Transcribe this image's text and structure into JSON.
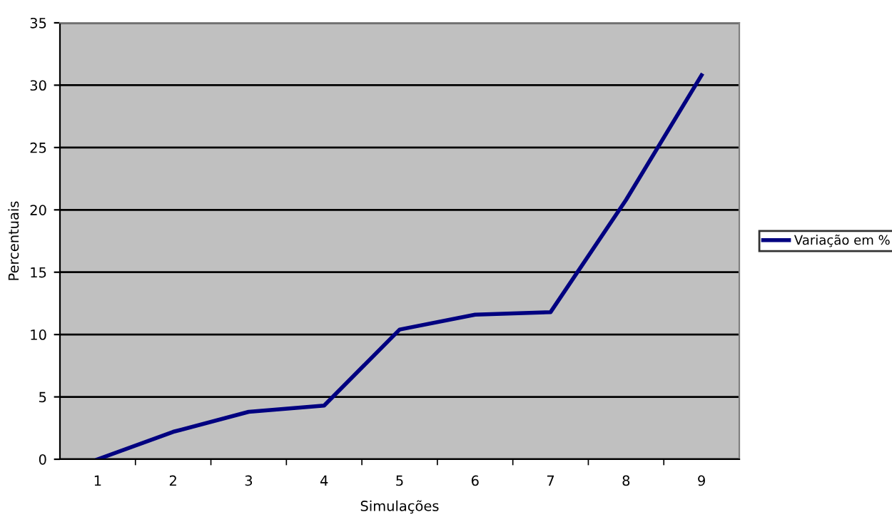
{
  "chart_data": {
    "type": "line",
    "xlabel": "Simulações",
    "ylabel": "Percentuais",
    "categories": [
      "1",
      "2",
      "3",
      "4",
      "5",
      "6",
      "7",
      "8",
      "9"
    ],
    "series": [
      {
        "name": "Variação em %",
        "color": "#000080",
        "values": [
          0,
          2.2,
          3.8,
          4.3,
          10.4,
          11.6,
          11.8,
          20.8,
          30.8
        ]
      }
    ],
    "ylim": [
      0,
      35
    ],
    "yticks": [
      0,
      5,
      10,
      15,
      20,
      25,
      30,
      35
    ],
    "grid": "y",
    "legend": "right",
    "marker": "none",
    "line_style": "solid"
  }
}
